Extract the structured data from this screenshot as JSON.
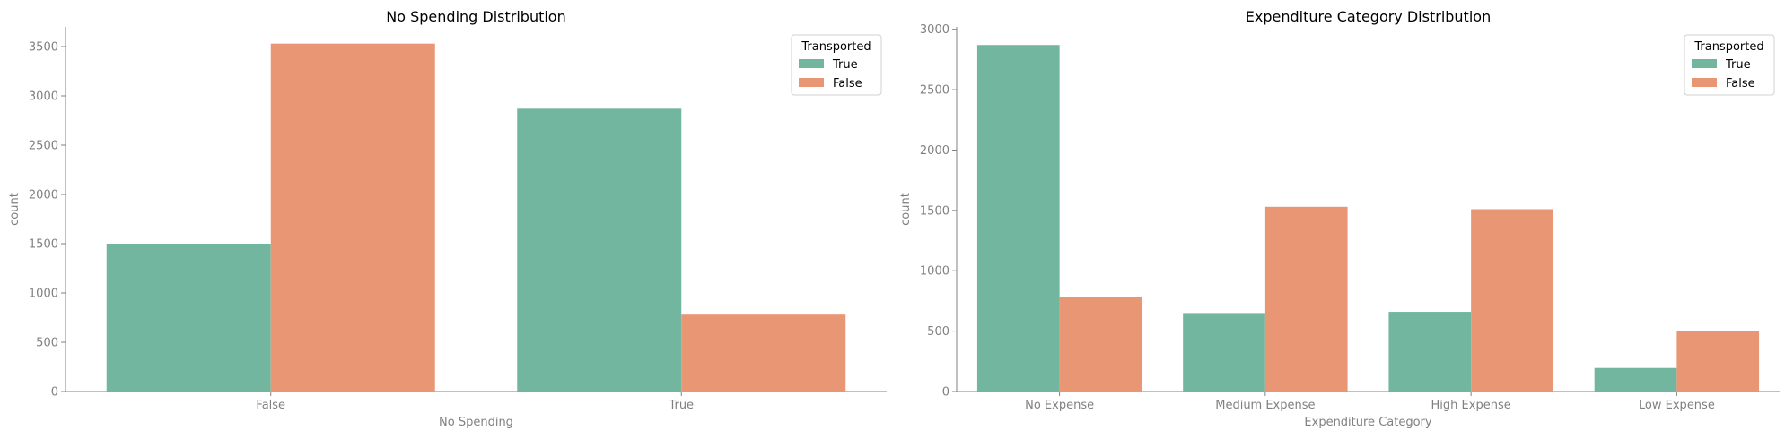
{
  "colors": {
    "true": "#72b6a0",
    "false": "#e99675"
  },
  "chart_data": [
    {
      "type": "bar",
      "title": "No Spending Distribution",
      "xlabel": "No Spending",
      "ylabel": "count",
      "categories": [
        "False",
        "True"
      ],
      "ylim": [
        0,
        3700
      ],
      "yticks": [
        0,
        500,
        1000,
        1500,
        2000,
        2500,
        3000,
        3500
      ],
      "legend": {
        "title": "Transported",
        "position": "top-right"
      },
      "series": [
        {
          "name": "True",
          "values": [
            1500,
            2870
          ]
        },
        {
          "name": "False",
          "values": [
            3530,
            780
          ]
        }
      ]
    },
    {
      "type": "bar",
      "title": "Expenditure Category Distribution",
      "xlabel": "Expenditure Category",
      "ylabel": "count",
      "categories": [
        "No Expense",
        "Medium Expense",
        "High Expense",
        "Low Expense"
      ],
      "ylim": [
        0,
        3020
      ],
      "yticks": [
        0,
        500,
        1000,
        1500,
        2000,
        2500,
        3000
      ],
      "legend": {
        "title": "Transported",
        "position": "top-right"
      },
      "series": [
        {
          "name": "True",
          "values": [
            2870,
            650,
            660,
            195
          ]
        },
        {
          "name": "False",
          "values": [
            780,
            1530,
            1510,
            500
          ]
        }
      ]
    }
  ]
}
